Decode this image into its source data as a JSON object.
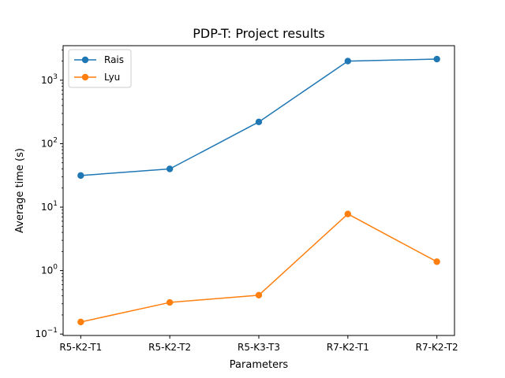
{
  "chart_data": {
    "type": "line",
    "title": "PDP-T: Project results",
    "xlabel": "Parameters",
    "ylabel": "Average time (s)",
    "y_scale": "log",
    "ylim": [
      0.095,
      3500
    ],
    "grid": false,
    "legend_position": "upper-left",
    "categories": [
      "R5-K2-T1",
      "R5-K2-T2",
      "R5-K3-T3",
      "R7-K2-T1",
      "R7-K2-T2"
    ],
    "y_ticks": [
      {
        "base": "10",
        "exp": "−1",
        "value": 0.1
      },
      {
        "base": "10",
        "exp": "0",
        "value": 1
      },
      {
        "base": "10",
        "exp": "1",
        "value": 10
      },
      {
        "base": "10",
        "exp": "2",
        "value": 100
      },
      {
        "base": "10",
        "exp": "3",
        "value": 1000
      }
    ],
    "series": [
      {
        "name": "Rais",
        "color": "#1f77b4",
        "marker": "circle",
        "values": [
          31.5,
          40,
          220,
          2000,
          2150
        ]
      },
      {
        "name": "Lyu",
        "color": "#ff7f0e",
        "marker": "circle",
        "values": [
          0.155,
          0.315,
          0.41,
          7.8,
          1.38
        ]
      }
    ]
  }
}
